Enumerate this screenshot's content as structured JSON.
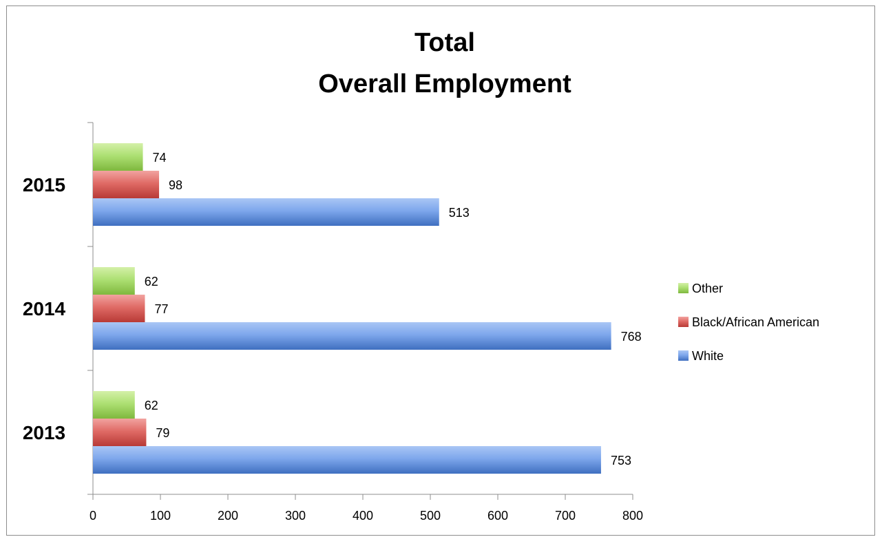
{
  "chart_data": {
    "type": "bar",
    "orientation": "horizontal",
    "title_lines": [
      "Total",
      "Overall Employment"
    ],
    "categories": [
      "2013",
      "2014",
      "2015"
    ],
    "series": [
      {
        "name": "White",
        "values": [
          753,
          768,
          513
        ],
        "color": "#6b96d9"
      },
      {
        "name": "Black/African American",
        "values": [
          79,
          77,
          98
        ],
        "color": "#d9534f"
      },
      {
        "name": "Other",
        "values": [
          62,
          62,
          74
        ],
        "color": "#9dd35a"
      }
    ],
    "xlim": [
      0,
      800
    ],
    "x_ticks": [
      0,
      100,
      200,
      300,
      400,
      500,
      600,
      700,
      800
    ],
    "data_labels": true,
    "grid": false,
    "legend": {
      "position": "right",
      "order": [
        "Other",
        "Black/African American",
        "White"
      ]
    }
  }
}
